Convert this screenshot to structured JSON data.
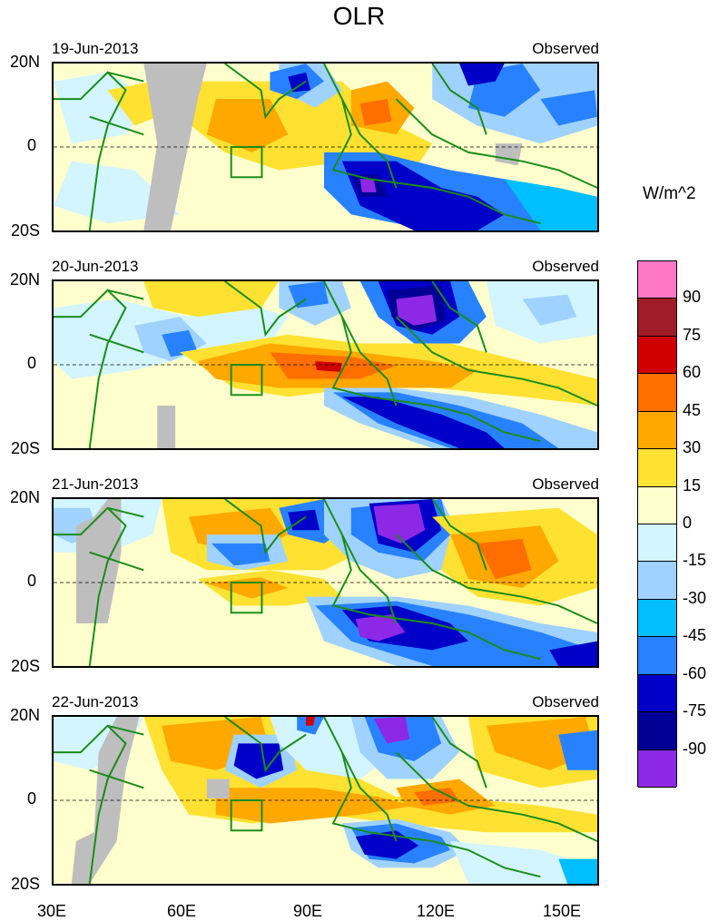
{
  "title": "OLR",
  "units": "W/m^2",
  "panels": [
    {
      "date": "19-Jun-2013",
      "label": "Observed"
    },
    {
      "date": "20-Jun-2013",
      "label": "Observed"
    },
    {
      "date": "21-Jun-2013",
      "label": "Observed"
    },
    {
      "date": "22-Jun-2013",
      "label": "Observed"
    }
  ],
  "y_ticks": [
    "20N",
    "0",
    "20S"
  ],
  "x_ticks": [
    "30E",
    "60E",
    "90E",
    "120E",
    "150E"
  ],
  "colorbar": {
    "labels": [
      "90",
      "75",
      "60",
      "45",
      "30",
      "15",
      "0",
      "-15",
      "-30",
      "-45",
      "-60",
      "-75",
      "-90"
    ],
    "colors": [
      "#ff78c8",
      "#a01c28",
      "#d10000",
      "#ff6e00",
      "#ffa800",
      "#ffe132",
      "#ffffcd",
      "#d2f5ff",
      "#a0d2ff",
      "#00beff",
      "#2882ff",
      "#0000c8",
      "#000096",
      "#8c28e6"
    ]
  },
  "colors": {
    "coast": "#1a8c1a",
    "missing": "#bebebe",
    "box": "#1a8c1a"
  }
}
